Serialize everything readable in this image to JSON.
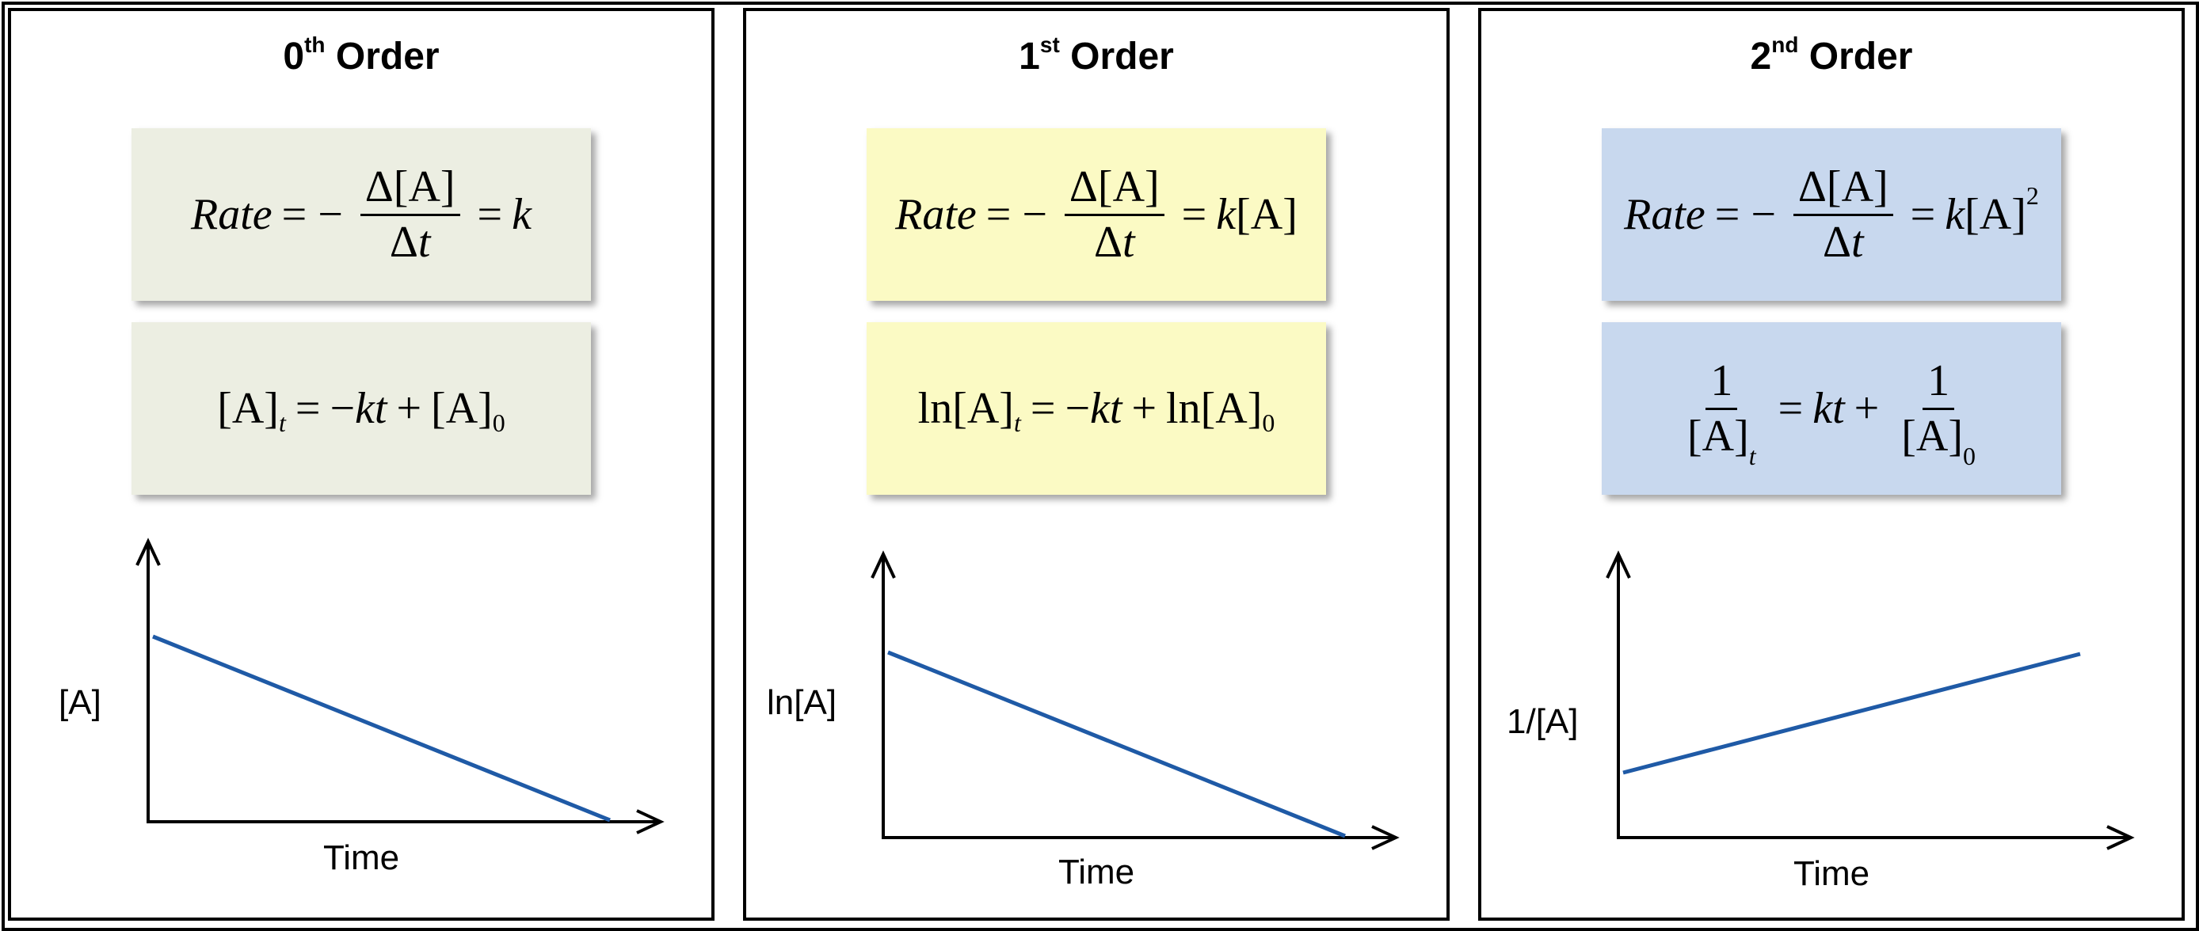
{
  "panels": [
    {
      "key": "zero",
      "title_main": "0",
      "title_sup": "th",
      "title_rest": " Order",
      "box_color": "#eceee2",
      "rate": {
        "lhs": "Rate",
        "minus": "= −",
        "num": "Δ[A]",
        "den": "Δt",
        "eq": "=",
        "rhs": "k",
        "rhs_extra": "",
        "power": ""
      },
      "integrated": {
        "a": "[A]",
        "a_sub": "t",
        "mid": " = −kt + [A]",
        "end_sub": "0"
      },
      "y_label": "[A]",
      "x_label": "Time",
      "line": {
        "start": 1.0,
        "end": 0.0
      }
    },
    {
      "key": "first",
      "title_main": "1",
      "title_sup": "st",
      "title_rest": " Order",
      "box_color": "#fbfac4",
      "rate": {
        "lhs": "Rate",
        "minus": "= −",
        "num": "Δ[A]",
        "den": "Δt",
        "eq": "=",
        "rhs": "k",
        "rhs_extra": "[A]",
        "power": ""
      },
      "integrated": {
        "a": "ln[A]",
        "a_sub": "t",
        "mid": " = −kt + ln[A]",
        "end_sub": "0"
      },
      "y_label": "ln[A]",
      "x_label": "Time",
      "line": {
        "start": 1.0,
        "end": 0.0
      }
    },
    {
      "key": "second",
      "title_main": "2",
      "title_sup": "nd",
      "title_rest": " Order",
      "box_color": "#c8d8ee",
      "rate": {
        "lhs": "Rate",
        "minus": "= −",
        "num": "Δ[A]",
        "den": "Δt",
        "eq": "=",
        "rhs": "k",
        "rhs_extra": "[A]",
        "power": "2"
      },
      "integrated": {
        "num1": "1",
        "den1": "[A]",
        "den1_sub": "t",
        "mid": "= kt +",
        "num2": "1",
        "den2": "[A]",
        "den2_sub": "0"
      },
      "y_label": "1/[A]",
      "x_label": "Time",
      "line": {
        "start": 0.0,
        "end": 1.0
      }
    }
  ],
  "colors": {
    "line": "#1f5aa6",
    "axis": "#000000"
  }
}
